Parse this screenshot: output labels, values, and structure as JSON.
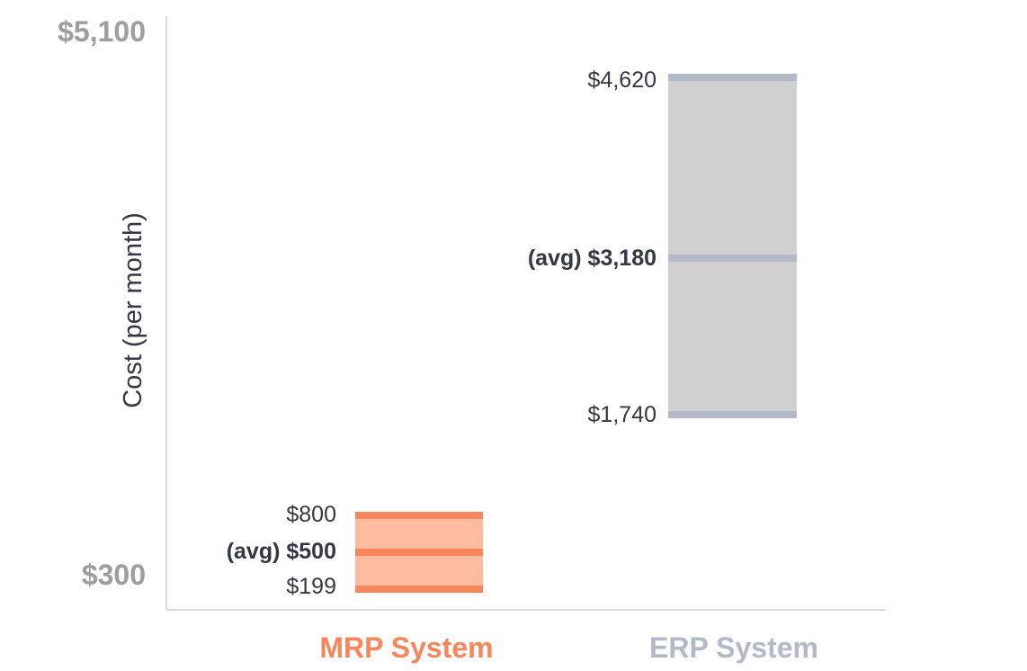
{
  "chart_data": {
    "type": "bar",
    "subtype": "floating-range",
    "ylabel": "Cost (per month)",
    "y_ticks": [
      "$5,100",
      "$300"
    ],
    "categories": [
      {
        "name": "MRP System",
        "min": 199,
        "avg": 500,
        "max": 800,
        "labels": {
          "max": "$800",
          "avg": "(avg) $500",
          "min": "$199"
        },
        "fill_color": "#fdbc9f",
        "line_color": "#f7875a",
        "label_color": "#f7875a"
      },
      {
        "name": "ERP System",
        "min": 1740,
        "avg": 3180,
        "max": 4620,
        "labels": {
          "max": "$4,620",
          "avg": "(avg) $3,180",
          "min": "$1,740"
        },
        "fill_color": "#d0d0d0",
        "line_color": "#b4b9c8",
        "label_color": "#b4b9c8"
      }
    ],
    "grid": false,
    "legend": "none"
  }
}
